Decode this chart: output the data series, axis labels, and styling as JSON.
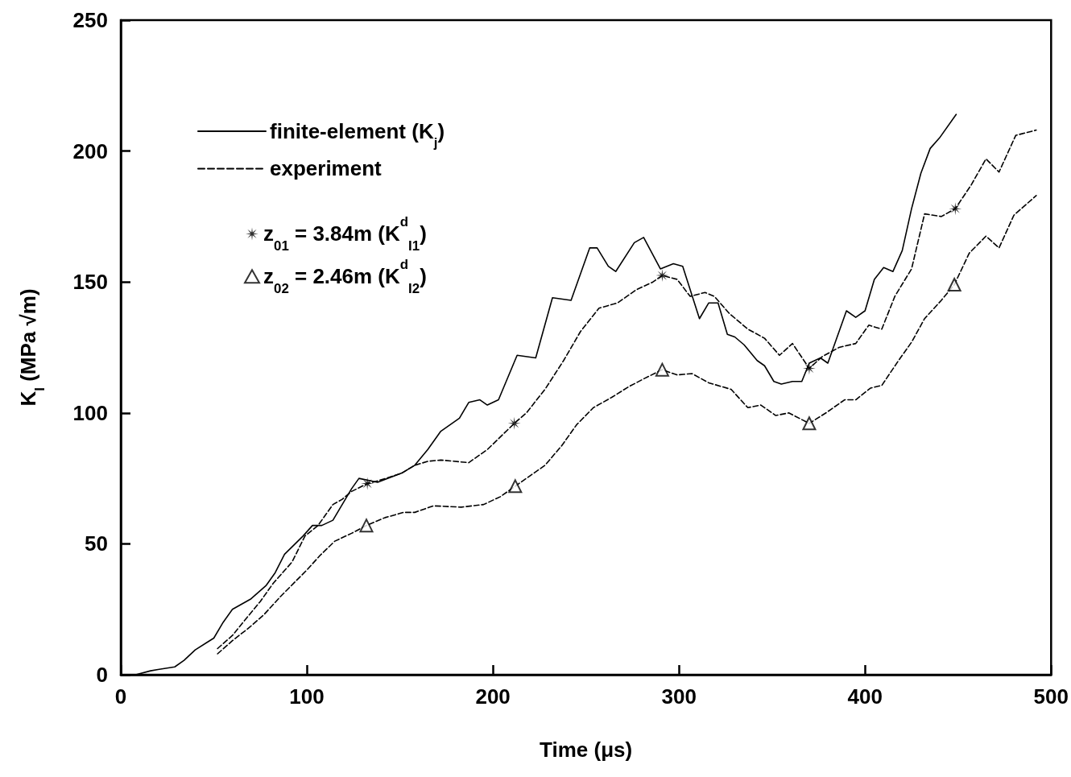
{
  "chart_data": {
    "type": "line",
    "xlabel": "Time (μs)",
    "ylabel": "K$_{I}$ (MPa √m)",
    "xlim": [
      0,
      500
    ],
    "xticks": [
      0,
      100,
      200,
      300,
      400,
      500
    ],
    "ylim": [
      0,
      250
    ],
    "yticks": [
      0,
      50,
      100,
      150,
      200,
      250
    ],
    "legend": "top left",
    "series": [
      {
        "name": "finite-element (K$_{j}$)",
        "color": "#000000",
        "line_style": "solid",
        "marker": "none",
        "x": [
          8,
          16,
          20,
          29,
          34,
          40,
          50,
          55,
          60,
          70,
          78,
          83,
          88,
          98,
          103,
          108,
          114,
          124,
          128,
          138,
          151,
          158,
          165,
          172,
          182,
          187,
          193,
          197,
          203,
          213,
          223,
          232,
          242,
          252,
          256,
          262,
          266,
          276,
          281,
          290,
          297,
          302,
          311,
          316,
          321,
          326,
          330,
          335,
          342,
          346,
          351,
          355,
          361,
          366,
          370,
          376,
          380,
          390,
          395,
          400,
          405,
          410,
          415,
          420,
          425,
          430,
          435,
          440,
          449
        ],
        "values": [
          0,
          1.5,
          2,
          3,
          5.5,
          9.5,
          14,
          20,
          25,
          29,
          34,
          39,
          46,
          53,
          57,
          57,
          59,
          71,
          75,
          73.5,
          77,
          80,
          86,
          93,
          98,
          104,
          105,
          103,
          105,
          122,
          121,
          144,
          143,
          163,
          163,
          156,
          154,
          165,
          167,
          155,
          157,
          156,
          136,
          142,
          142,
          130,
          129,
          126,
          120,
          118,
          112,
          111,
          112,
          112,
          119,
          121,
          119,
          139,
          136.5,
          139,
          151,
          155.5,
          154,
          162,
          178,
          191.5,
          201,
          205,
          214
        ]
      },
      {
        "name": "experiment",
        "color": "#000000",
        "line_style": "dashed",
        "marker": "none",
        "x": [
          52,
          60,
          68,
          75,
          82,
          92,
          99,
          106,
          114,
          119,
          124,
          132.5,
          138,
          151,
          158,
          165,
          172,
          187,
          197,
          211.5,
          218,
          228,
          238,
          247,
          257,
          267,
          277,
          286,
          291,
          299,
          306,
          314,
          319,
          327,
          337,
          346,
          354,
          361,
          370,
          377,
          386,
          395,
          402,
          409,
          416,
          425,
          432,
          441,
          448.5,
          457,
          465,
          472,
          481,
          492
        ],
        "values": [
          10,
          15,
          22,
          28,
          35,
          43,
          53,
          57,
          65,
          67,
          70,
          73,
          74,
          77,
          80,
          81.5,
          82,
          81,
          86,
          96,
          100,
          109,
          120,
          131,
          140,
          142,
          147,
          150,
          152.5,
          151,
          144.5,
          146,
          144.5,
          138,
          132,
          128.5,
          122,
          126.5,
          117,
          121.5,
          125,
          126.5,
          133.5,
          132,
          144.5,
          155,
          176,
          175,
          178,
          187,
          197,
          192,
          206,
          208
        ]
      },
      {
        "color": "#000000",
        "line_style": "dashed",
        "marker": "none",
        "x": [
          52,
          60,
          69,
          77,
          86,
          93,
          100,
          107,
          115,
          124,
          132,
          142,
          152,
          158,
          168,
          183,
          195,
          204,
          212,
          222,
          228,
          237,
          245,
          254,
          264,
          273,
          281,
          291,
          299,
          307,
          316,
          328,
          337,
          344,
          352,
          359,
          370,
          379,
          389,
          395,
          403,
          409,
          418,
          425,
          432,
          441,
          448,
          456,
          465,
          472,
          480,
          492
        ],
        "values": [
          8,
          13,
          18,
          23,
          30,
          35,
          40,
          45.5,
          51,
          54,
          57,
          60,
          62,
          62,
          64.5,
          64,
          65,
          68,
          72,
          77,
          80,
          87.5,
          95.5,
          102,
          106,
          110,
          113,
          116.5,
          114.5,
          115,
          111.5,
          109,
          102,
          103,
          99,
          100,
          96,
          100,
          105,
          105,
          109.5,
          110.5,
          120,
          127,
          136,
          143,
          149,
          161,
          167.5,
          163,
          175.5,
          183
        ]
      },
      {
        "name": "z$_{01}$ = 3.84m (K$^{d}$$_{I1}$)",
        "type": "scatter",
        "color": "#000000",
        "marker": "star",
        "x": [
          132.5,
          211.5,
          291,
          370,
          448.5
        ],
        "values": [
          73,
          96,
          152.5,
          117,
          178
        ]
      },
      {
        "name": "z$_{02}$ = 2.46m (K$^{d}$$_{I2}$)",
        "type": "scatter",
        "color": "#000000",
        "marker": "triangle",
        "x": [
          132,
          212,
          291,
          370,
          448
        ],
        "values": [
          57,
          72,
          116.5,
          96,
          149
        ]
      }
    ]
  }
}
